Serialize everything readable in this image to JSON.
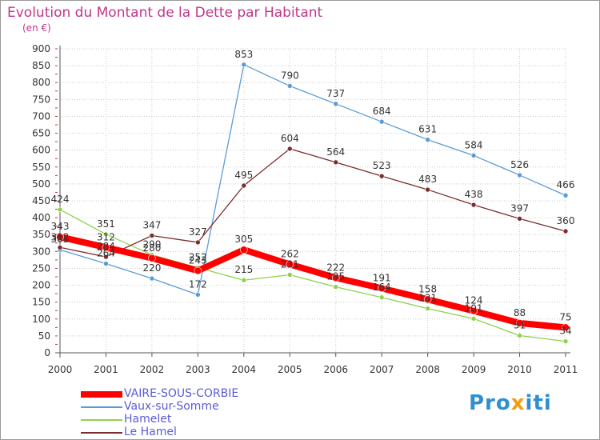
{
  "header": {
    "title": "Evolution du Montant de la Dette par Habitant",
    "unit": "(en €)"
  },
  "logo": {
    "part1": "Pro",
    "part2": "x",
    "part3": "iti"
  },
  "colors": {
    "title": "#c2358b",
    "axis": "#555555",
    "tick_text": "#333333",
    "grid": "#cccccc"
  },
  "chart_data": {
    "type": "line",
    "x": [
      "2000",
      "2001",
      "2002",
      "2003",
      "2004",
      "2005",
      "2006",
      "2007",
      "2008",
      "2009",
      "2010",
      "2011"
    ],
    "ylim": [
      0,
      900
    ],
    "yticks": [
      0,
      50,
      100,
      150,
      200,
      250,
      300,
      350,
      400,
      450,
      500,
      550,
      600,
      650,
      700,
      750,
      800,
      850,
      900
    ],
    "grid": true,
    "legend_position": "bottom-left",
    "series": [
      {
        "name": "VAIRE-SOUS-CORBIE",
        "color": "#ff0000",
        "line_width": 8,
        "values": [
          343,
          312,
          280,
          243,
          305,
          262,
          222,
          191,
          158,
          124,
          88,
          75
        ],
        "labels": [
          343,
          312,
          280,
          243,
          305,
          262,
          222,
          191,
          158,
          124,
          88,
          75
        ]
      },
      {
        "name": "Vaux-sur-Somme",
        "color": "#5b9bd5",
        "line_width": 1.3,
        "values": [
          305,
          264,
          220,
          172,
          853,
          790,
          737,
          684,
          631,
          584,
          526,
          466
        ],
        "labels": [
          305,
          264,
          220,
          172,
          853,
          790,
          737,
          684,
          631,
          584,
          526,
          466
        ]
      },
      {
        "name": "Hamelet",
        "color": "#8fd14f",
        "line_width": 1.3,
        "values": [
          424,
          351,
          290,
          252,
          215,
          231,
          195,
          164,
          131,
          101,
          51,
          34
        ],
        "labels": [
          424,
          351,
          290,
          252,
          215,
          231,
          195,
          164,
          131,
          101,
          51,
          34
        ]
      },
      {
        "name": "Le Hamel",
        "color": "#7b2d2d",
        "line_width": 1.3,
        "values": [
          312,
          284,
          347,
          327,
          495,
          604,
          564,
          523,
          483,
          438,
          397,
          360
        ],
        "labels": [
          312,
          284,
          347,
          327,
          495,
          604,
          564,
          523,
          483,
          438,
          397,
          360
        ]
      }
    ]
  }
}
